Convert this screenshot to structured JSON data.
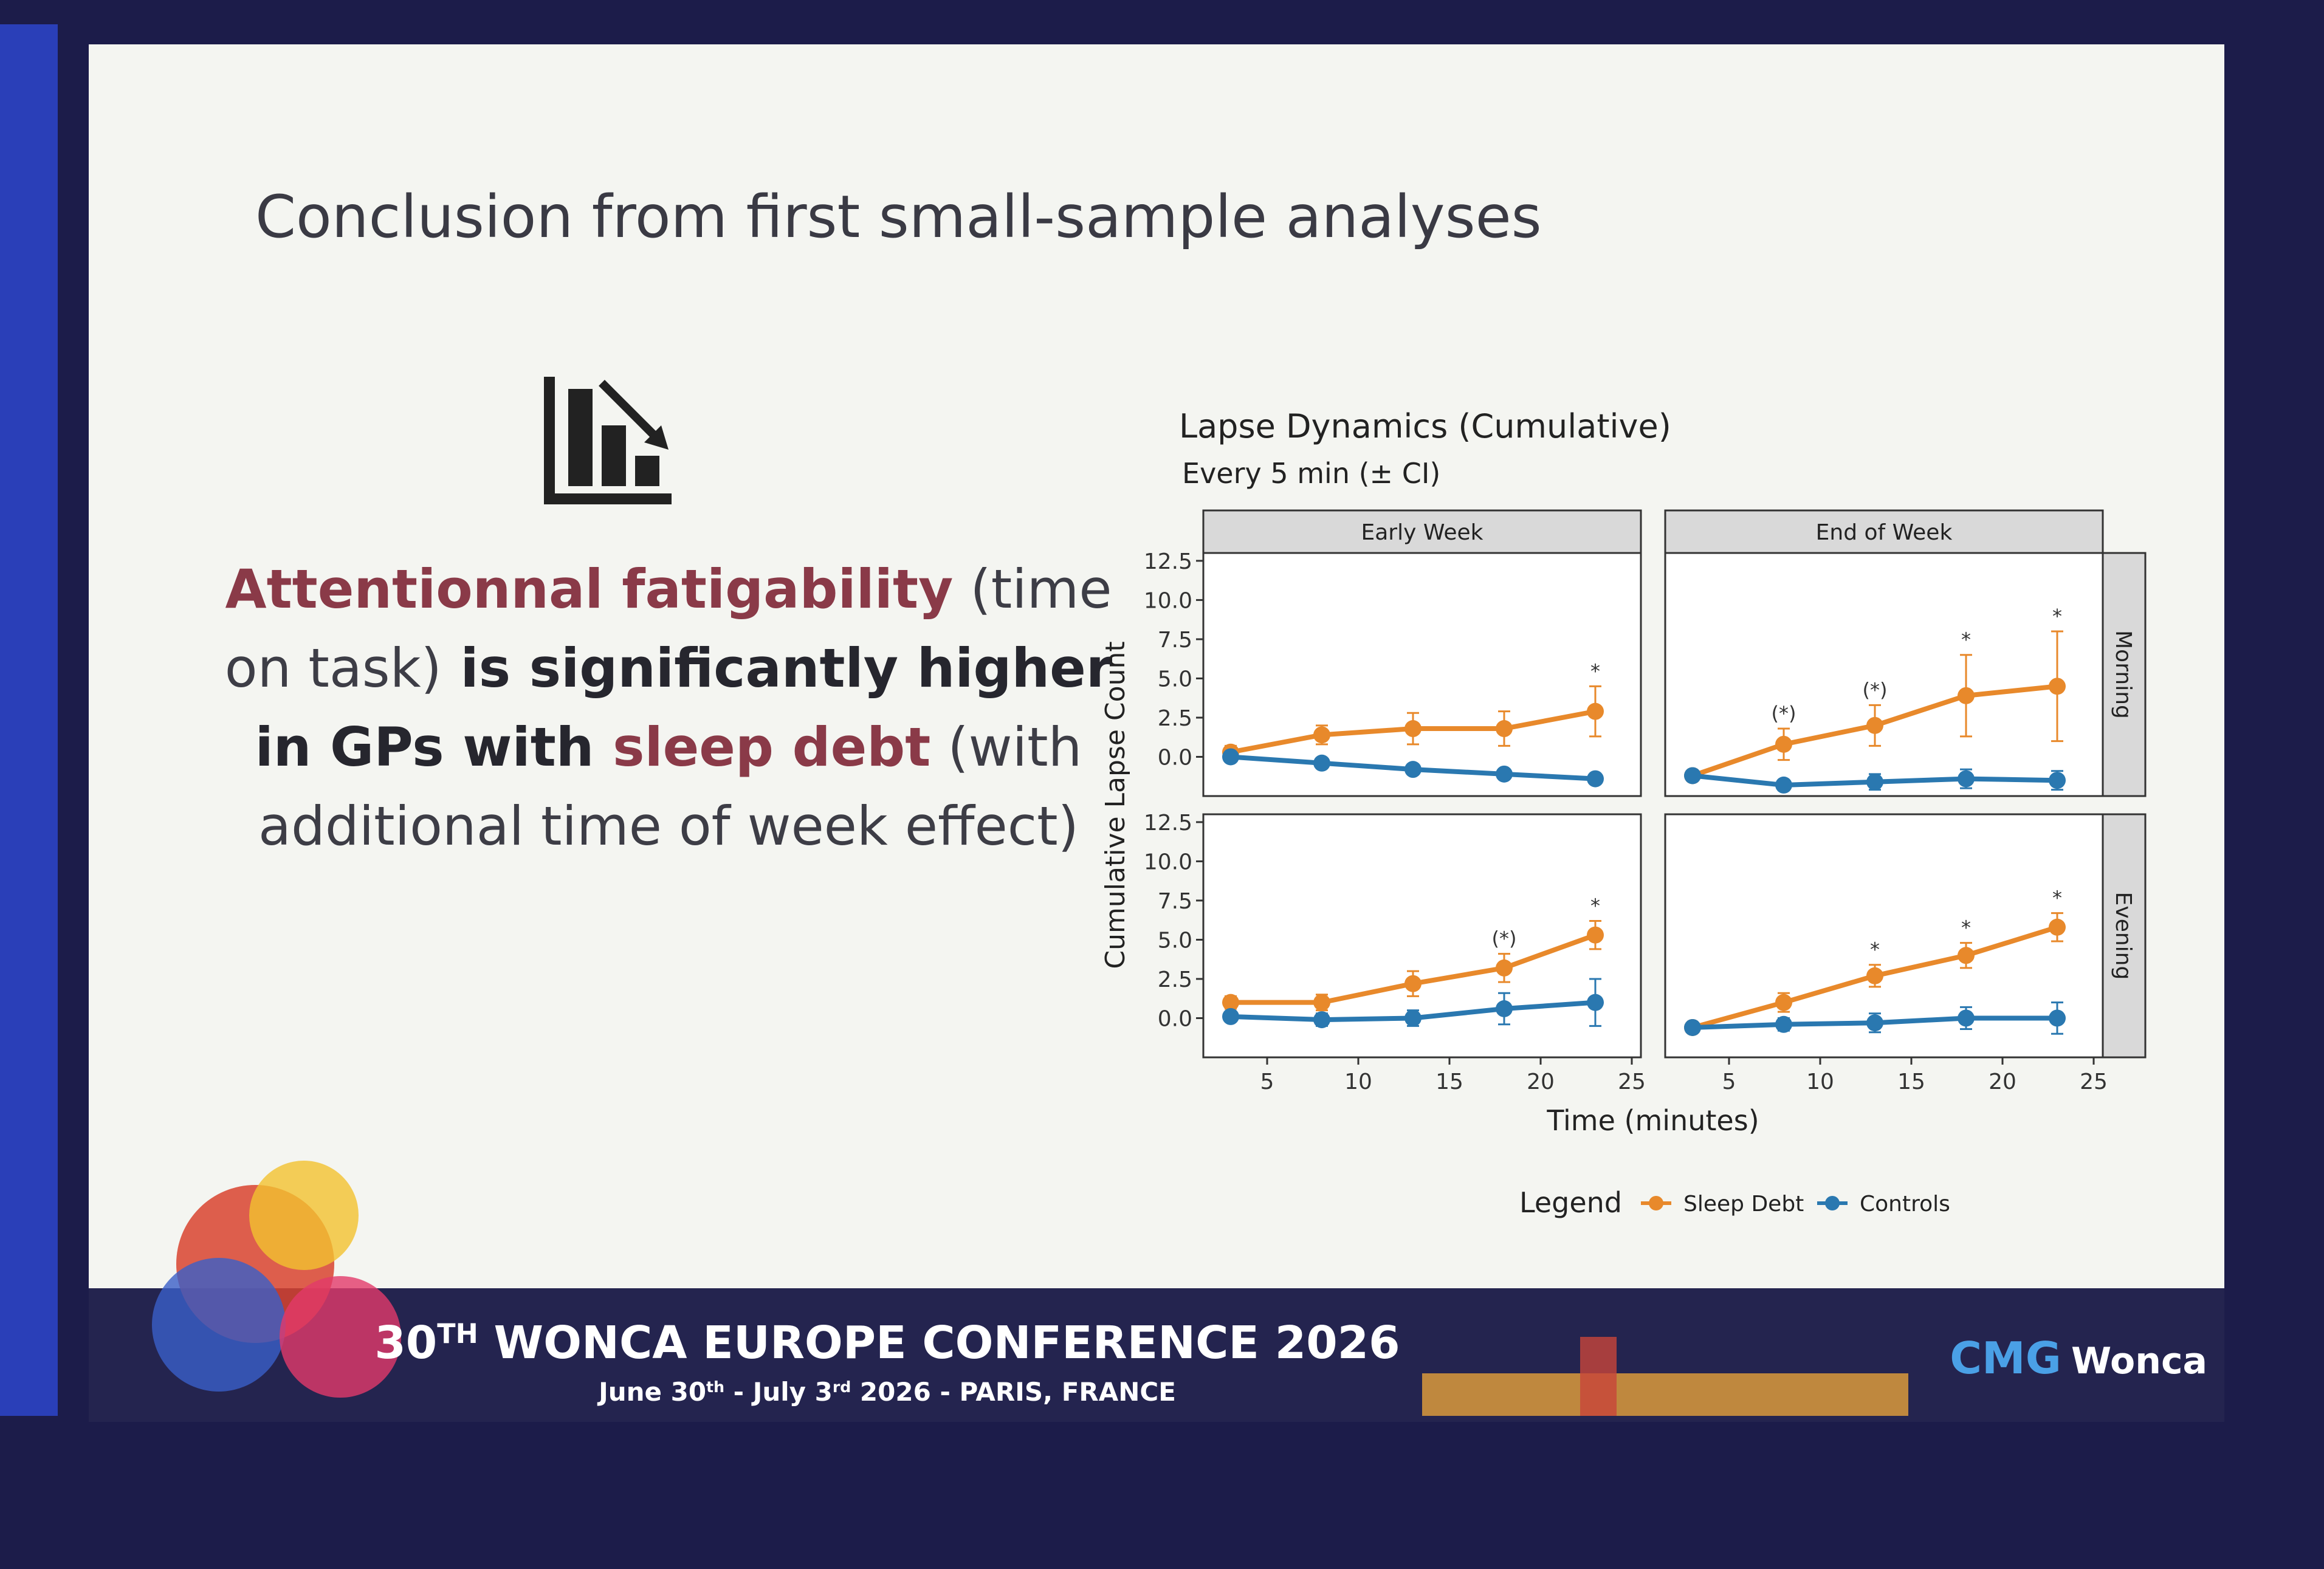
{
  "slide": {
    "title": "Conclusion from first small-sample analyses",
    "body": [
      [
        {
          "text": "Attentionnal fatigability",
          "style": "accent"
        },
        {
          "text": " (time",
          "style": "plain"
        }
      ],
      [
        {
          "text": "on task)",
          "style": "plain"
        },
        {
          "text": " is significantly higher",
          "style": "bold"
        }
      ],
      [
        {
          "text": "in GPs with ",
          "style": "bold"
        },
        {
          "text": "sleep debt",
          "style": "accent"
        },
        {
          "text": " (with",
          "style": "plain"
        }
      ],
      [
        {
          "text": "additional time of week effect)",
          "style": "plain"
        }
      ]
    ],
    "footer": {
      "conference": [
        "30",
        "TH",
        " WONCA EUROPE CONFERENCE 2026"
      ],
      "dates": [
        "June 30",
        "th",
        " - July 3",
        "rd",
        " 2026 - PARIS, FRANCE"
      ],
      "logos": [
        "CMG",
        "Wonca"
      ]
    }
  },
  "chart_data": {
    "type": "line",
    "title": "Lapse Dynamics (Cumulative)",
    "subtitle": "Every 5 min (± CI)",
    "xlabel": "Time (minutes)",
    "ylabel": "Cumulative Lapse Count",
    "legend_title": "Legend",
    "facet_columns": [
      "Early Week",
      "End of Week"
    ],
    "facet_rows": [
      "Morning",
      "Evening"
    ],
    "x": [
      3,
      8,
      13,
      18,
      23
    ],
    "xlim": [
      1.5,
      25.5
    ],
    "xticks": [
      5,
      10,
      15,
      20,
      25
    ],
    "ylim": [
      -2.5,
      13
    ],
    "yticks": [
      {
        "value": 0,
        "label": "0.0"
      },
      {
        "value": 2.5,
        "label": "2.5"
      },
      {
        "value": 5,
        "label": "5.0"
      },
      {
        "value": 7.5,
        "label": "7.5"
      },
      {
        "value": 10,
        "label": "10.0"
      },
      {
        "value": 12.5,
        "label": "12.5"
      }
    ],
    "series": [
      {
        "name": "Sleep Debt",
        "color": "#e8892b"
      },
      {
        "name": "Controls",
        "color": "#2a78b0"
      }
    ],
    "panels": [
      {
        "values": [
          [
            0.3,
            1.4,
            1.8,
            1.8,
            2.9
          ],
          [
            0,
            -0.4,
            -0.8,
            -1.1,
            -1.4
          ]
        ],
        "errors": [
          [
            0.4,
            0.6,
            1.0,
            1.1,
            1.6
          ],
          [
            0.2,
            0.2,
            0.2,
            0.2,
            0.2
          ]
        ],
        "annotations": [
          {
            "x": 23,
            "label": "*"
          }
        ]
      },
      {
        "values": [
          [
            -1.2,
            0.8,
            2.0,
            3.9,
            4.5
          ],
          [
            -1.2,
            -1.8,
            -1.6,
            -1.4,
            -1.5
          ]
        ],
        "errors": [
          [
            0.3,
            1.0,
            1.3,
            2.6,
            3.5
          ],
          [
            0.3,
            0.3,
            0.5,
            0.6,
            0.6
          ]
        ],
        "annotations": [
          {
            "x": 8,
            "label": "(*)"
          },
          {
            "x": 13,
            "label": "(*)"
          },
          {
            "x": 18,
            "label": "*"
          },
          {
            "x": 23,
            "label": "*"
          }
        ]
      },
      {
        "values": [
          [
            1.0,
            1.0,
            2.2,
            3.2,
            5.3
          ],
          [
            0.1,
            -0.1,
            0,
            0.6,
            1.0
          ]
        ],
        "errors": [
          [
            0.4,
            0.5,
            0.8,
            0.9,
            0.9
          ],
          [
            0.3,
            0.4,
            0.5,
            1.0,
            1.5
          ]
        ],
        "annotations": [
          {
            "x": 18,
            "label": "(*)"
          },
          {
            "x": 23,
            "label": "*"
          }
        ]
      },
      {
        "values": [
          [
            -0.6,
            1.0,
            2.7,
            4.0,
            5.8
          ],
          [
            -0.6,
            -0.4,
            -0.3,
            0,
            0
          ]
        ],
        "errors": [
          [
            0.3,
            0.6,
            0.7,
            0.8,
            0.9
          ],
          [
            0.3,
            0.4,
            0.6,
            0.7,
            1.0
          ]
        ],
        "annotations": [
          {
            "x": 13,
            "label": "*"
          },
          {
            "x": 18,
            "label": "*"
          },
          {
            "x": 23,
            "label": "*"
          }
        ]
      }
    ]
  }
}
